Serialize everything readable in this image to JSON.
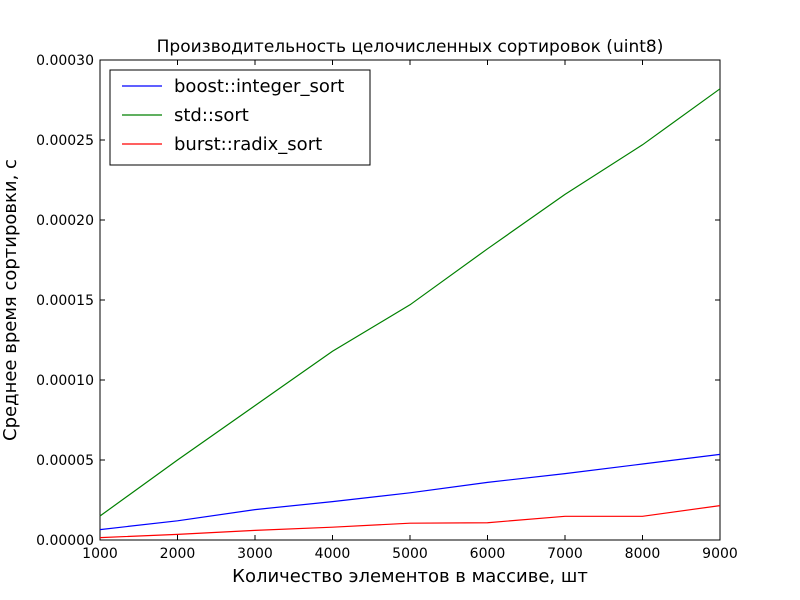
{
  "chart_data": {
    "type": "line",
    "title": "Производительность целочисленных сортировок (uint8)",
    "xlabel": "Количество элементов в массиве, шт",
    "ylabel": "Среднее время сортировки, с",
    "x": [
      1000,
      2000,
      3000,
      4000,
      5000,
      6000,
      7000,
      8000,
      9000
    ],
    "xlim": [
      1000,
      9000
    ],
    "ylim": [
      0,
      0.0003
    ],
    "x_ticks": [
      "1000",
      "2000",
      "3000",
      "4000",
      "5000",
      "6000",
      "7000",
      "8000",
      "9000"
    ],
    "y_ticks": [
      "0.00000",
      "0.00005",
      "0.00010",
      "0.00015",
      "0.00020",
      "0.00025",
      "0.00030"
    ],
    "grid": false,
    "legend_position": "top-left",
    "series": [
      {
        "name": "boost::integer_sort",
        "color": "#0000ff",
        "values": [
          6.5e-06,
          1.2e-05,
          1.9e-05,
          2.4e-05,
          2.95e-05,
          3.6e-05,
          4.15e-05,
          4.75e-05,
          5.35e-05
        ]
      },
      {
        "name": "std::sort",
        "color": "#008000",
        "values": [
          1.5e-05,
          5e-05,
          8.4e-05,
          0.000118,
          0.000147,
          0.000182,
          0.000216,
          0.000247,
          0.000282
        ]
      },
      {
        "name": "burst::radix_sort",
        "color": "#ff0000",
        "values": [
          1.5e-06,
          3.5e-06,
          6e-06,
          8e-06,
          1.05e-05,
          1.08e-05,
          1.48e-05,
          1.48e-05,
          2.15e-05
        ]
      }
    ]
  }
}
